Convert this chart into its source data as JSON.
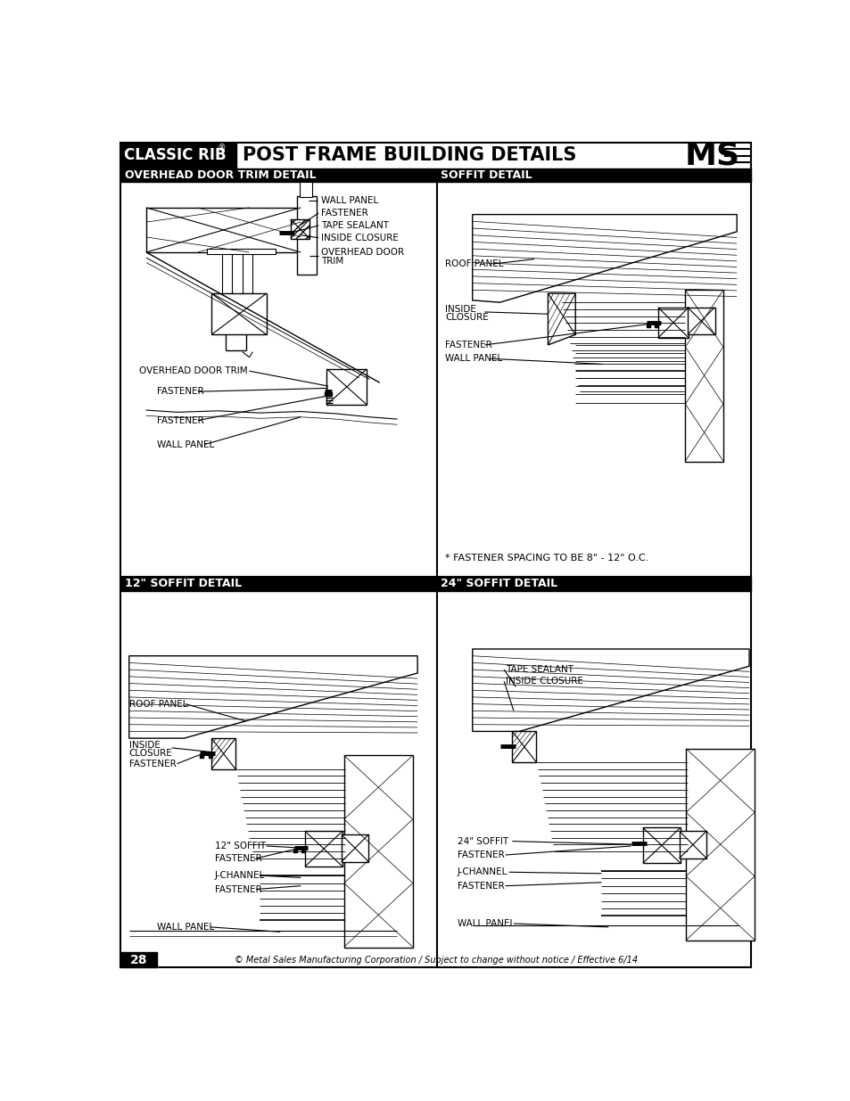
{
  "page_bg": "#ffffff",
  "title_classic_rib": "CLASSIC RIB",
  "title_registered": "®",
  "title_main": "POST FRAME BUILDING DETAILS",
  "section1_title": "OVERHEAD DOOR TRIM DETAIL",
  "section2_title": "SOFFIT DETAIL",
  "section3_title": "12\" SOFFIT DETAIL",
  "section4_title": "24\" SOFFIT DETAIL",
  "footer_text": "© Metal Sales Manufacturing Corporation / Subject to change without notice / Effective 6/14",
  "page_number": "28",
  "note_text": "* FASTENER SPACING TO BE 8\" - 12\" O.C."
}
